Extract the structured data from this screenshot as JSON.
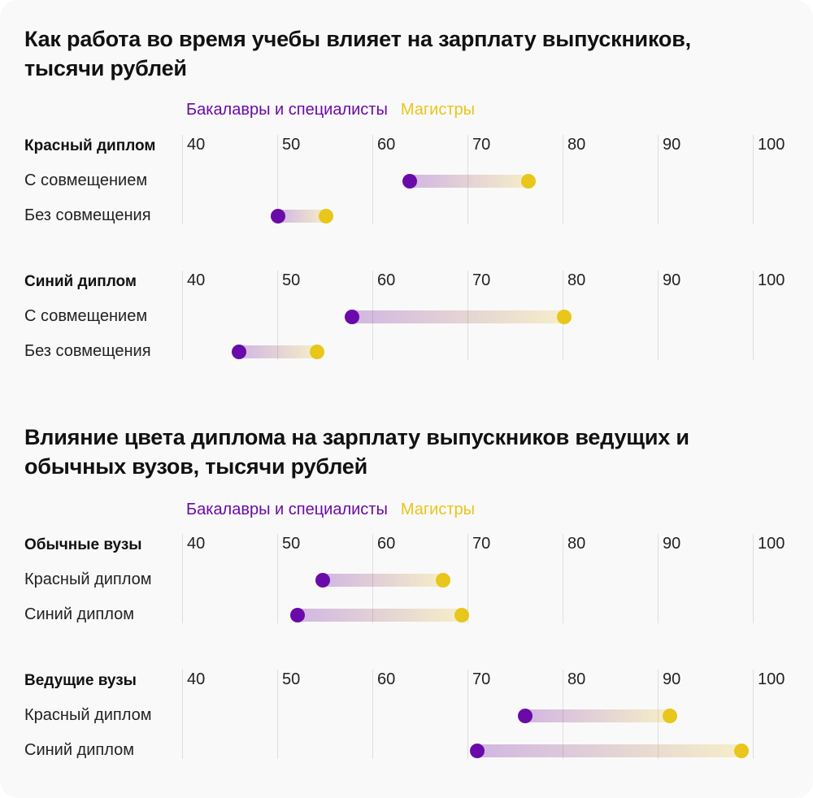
{
  "colors": {
    "bachelors": "#6a0aa8",
    "masters": "#e8c61a",
    "grid": "#dedede",
    "background": "#f9f9f9"
  },
  "chart_data": [
    {
      "type": "dumbbell",
      "title": "Как работа во время учебы влияет на зарплату выпускников, тысячи рублей",
      "legend": [
        "Бакалавры и специалисты",
        "Магистры"
      ],
      "legend_position": "top",
      "xlim": [
        40,
        100
      ],
      "ticks": [
        "40",
        "50",
        "60",
        "70",
        "80",
        "90",
        "100"
      ],
      "grid": true,
      "groups": [
        {
          "label": "Красный диплом",
          "rows": [
            {
              "label": "С совмещением",
              "bachelors": 63.9,
              "masters": 76.4
            },
            {
              "label": "Без совмещения",
              "bachelors": 50.1,
              "masters": 55.1
            }
          ]
        },
        {
          "label": "Синий диплом",
          "rows": [
            {
              "label": "С совмещением",
              "bachelors": 57.9,
              "masters": 80.2
            },
            {
              "label": "Без совмещения",
              "bachelors": 46.0,
              "masters": 54.2
            }
          ]
        }
      ]
    },
    {
      "type": "dumbbell",
      "title": "Влияние цвета диплома на зарплату выпускников ведущих и обычных вузов, тысячи рублей",
      "legend": [
        "Бакалавры и специалисты",
        "Магистры"
      ],
      "legend_position": "top",
      "xlim": [
        40,
        100
      ],
      "ticks": [
        "40",
        "50",
        "60",
        "70",
        "80",
        "90",
        "100"
      ],
      "grid": true,
      "groups": [
        {
          "label": "Обычные вузы",
          "rows": [
            {
              "label": "Красный диплом",
              "bachelors": 54.8,
              "masters": 67.4
            },
            {
              "label": "Синий диплом",
              "bachelors": 52.1,
              "masters": 69.4
            }
          ]
        },
        {
          "label": "Ведущие вузы",
          "rows": [
            {
              "label": "Красный диплом",
              "bachelors": 76.1,
              "masters": 91.3
            },
            {
              "label": "Синий диплом",
              "bachelors": 71.0,
              "masters": 98.8
            }
          ]
        }
      ]
    }
  ]
}
